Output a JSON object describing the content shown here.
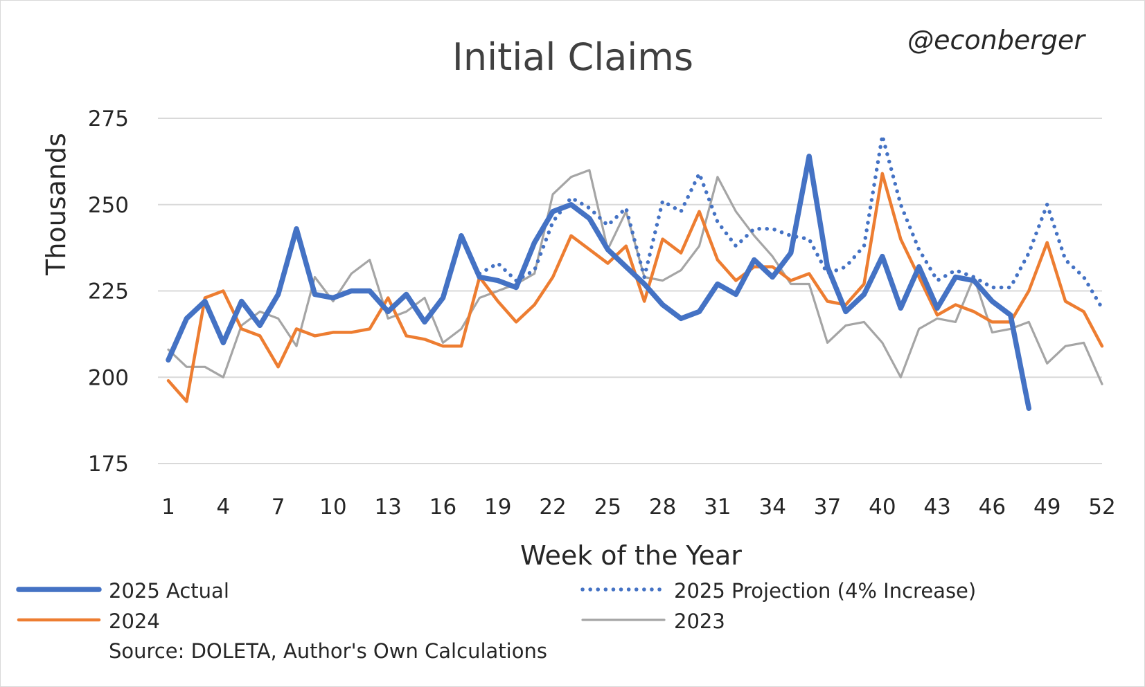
{
  "chart_data": {
    "type": "line",
    "title": "Initial Claims",
    "watermark": "@econberger",
    "xlabel": "Week of the Year",
    "ylabel": "Thousands",
    "source": "Source: DOLETA, Author's Own Calculations",
    "ylim": [
      175,
      275
    ],
    "yticks": [
      175,
      200,
      225,
      250,
      275
    ],
    "xlim": [
      1,
      52
    ],
    "xticks": [
      1,
      4,
      7,
      10,
      13,
      16,
      19,
      22,
      25,
      28,
      31,
      34,
      37,
      40,
      43,
      46,
      49,
      52
    ],
    "grid": true,
    "legend_position": "bottom",
    "series": [
      {
        "name": "2025 Actual",
        "color": "#4472c4",
        "style": "solid-thick",
        "x": [
          1,
          2,
          3,
          4,
          5,
          6,
          7,
          8,
          9,
          10,
          11,
          12,
          13,
          14,
          15,
          16,
          17,
          18,
          19,
          20,
          21,
          22,
          23,
          24,
          25,
          26,
          27,
          28,
          29,
          30,
          31,
          32,
          33,
          34,
          35,
          36,
          37,
          38,
          39,
          40,
          41,
          42,
          43,
          44,
          45,
          46,
          47,
          48
        ],
        "values": [
          205,
          217,
          222,
          210,
          222,
          215,
          224,
          243,
          224,
          223,
          225,
          225,
          219,
          224,
          216,
          223,
          241,
          229,
          228,
          226,
          239,
          248,
          250,
          246,
          237,
          232,
          227,
          221,
          217,
          219,
          227,
          224,
          234,
          229,
          236,
          264,
          232,
          219,
          224,
          235,
          220,
          232,
          220,
          229,
          228,
          222,
          218,
          191
        ]
      },
      {
        "name": "2025 Projection (4% Increase)",
        "color": "#4472c4",
        "style": "dotted",
        "x": [
          18,
          19,
          20,
          21,
          22,
          23,
          24,
          25,
          26,
          27,
          28,
          29,
          30,
          31,
          32,
          33,
          34,
          35,
          36,
          37,
          38,
          39,
          40,
          41,
          42,
          43,
          44,
          45,
          46,
          47,
          48,
          49,
          50,
          51,
          52
        ],
        "values": [
          230,
          233,
          228,
          231,
          245,
          252,
          249,
          244,
          249,
          229,
          251,
          248,
          259,
          245,
          238,
          243,
          243,
          241,
          240,
          230,
          232,
          238,
          270,
          250,
          237,
          228,
          231,
          229,
          226,
          226,
          236,
          250,
          234,
          229,
          220
        ]
      },
      {
        "name": "2024",
        "color": "#ed7d31",
        "style": "solid",
        "x": [
          1,
          2,
          3,
          4,
          5,
          6,
          7,
          8,
          9,
          10,
          11,
          12,
          13,
          14,
          15,
          16,
          17,
          18,
          19,
          20,
          21,
          22,
          23,
          24,
          25,
          26,
          27,
          28,
          29,
          30,
          31,
          32,
          33,
          34,
          35,
          36,
          37,
          38,
          39,
          40,
          41,
          42,
          43,
          44,
          45,
          46,
          47,
          48,
          49,
          50,
          51,
          52
        ],
        "values": [
          199,
          193,
          223,
          225,
          214,
          212,
          203,
          214,
          212,
          213,
          213,
          214,
          223,
          212,
          211,
          209,
          209,
          229,
          222,
          216,
          221,
          229,
          241,
          237,
          233,
          238,
          222,
          240,
          236,
          248,
          234,
          228,
          232,
          232,
          228,
          230,
          222,
          221,
          227,
          259,
          240,
          229,
          218,
          221,
          219,
          216,
          216,
          225,
          239,
          222,
          219,
          209
        ]
      },
      {
        "name": "2023",
        "color": "#a5a5a5",
        "style": "solid-thin",
        "x": [
          1,
          2,
          3,
          4,
          5,
          6,
          7,
          8,
          9,
          10,
          11,
          12,
          13,
          14,
          15,
          16,
          17,
          18,
          19,
          20,
          21,
          22,
          23,
          24,
          25,
          26,
          27,
          28,
          29,
          30,
          31,
          32,
          33,
          34,
          35,
          36,
          37,
          38,
          39,
          40,
          41,
          42,
          43,
          44,
          45,
          46,
          47,
          48,
          49,
          50,
          51,
          52
        ],
        "values": [
          208,
          203,
          203,
          200,
          215,
          219,
          217,
          209,
          229,
          222,
          230,
          234,
          217,
          219,
          223,
          210,
          214,
          223,
          225,
          227,
          230,
          253,
          258,
          260,
          237,
          248,
          229,
          228,
          231,
          238,
          258,
          248,
          241,
          235,
          227,
          227,
          210,
          215,
          216,
          210,
          200,
          214,
          217,
          216,
          229,
          213,
          214,
          216,
          204,
          209,
          210,
          198
        ]
      }
    ]
  }
}
